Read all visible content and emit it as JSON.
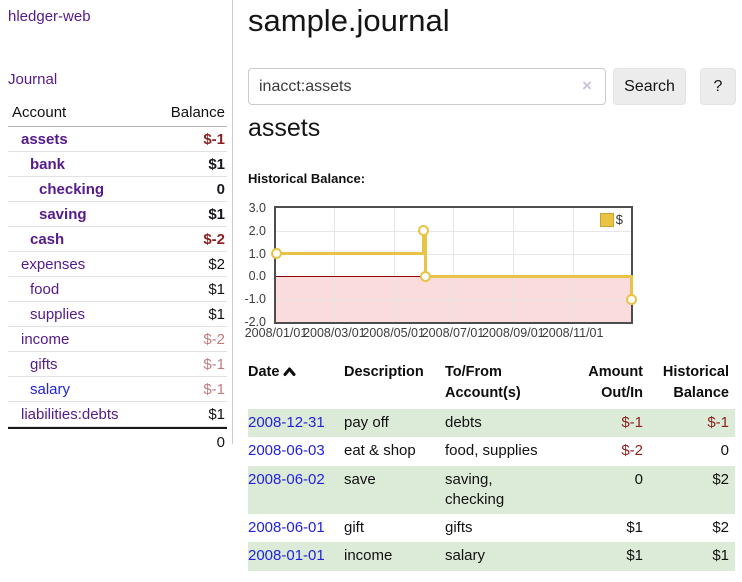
{
  "app": {
    "brand": "hledger-web",
    "nav_journal": "Journal"
  },
  "sidebar": {
    "table_headers": {
      "account": "Account",
      "balance": "Balance"
    },
    "accounts": [
      {
        "name": "assets",
        "indent": 1,
        "bold": true,
        "balance": "$-1",
        "balance_style": "neg-strong"
      },
      {
        "name": "bank",
        "indent": 2,
        "bold": true,
        "balance": "$1",
        "balance_style": "pos-strong"
      },
      {
        "name": "checking",
        "indent": 3,
        "bold": true,
        "balance": "0",
        "balance_style": "pos-strong"
      },
      {
        "name": "saving",
        "indent": 3,
        "bold": true,
        "balance": "$1",
        "balance_style": "pos-strong"
      },
      {
        "name": "cash",
        "indent": 2,
        "bold": true,
        "balance": "$-2",
        "balance_style": "neg-strong"
      },
      {
        "name": "expenses",
        "indent": 1,
        "bold": false,
        "balance": "$2",
        "balance_style": "pos"
      },
      {
        "name": "food",
        "indent": 2,
        "bold": false,
        "balance": "$1",
        "balance_style": "pos"
      },
      {
        "name": "supplies",
        "indent": 2,
        "bold": false,
        "balance": "$1",
        "balance_style": "pos"
      },
      {
        "name": "income",
        "indent": 1,
        "bold": false,
        "balance": "$-2",
        "balance_style": "neg-soft"
      },
      {
        "name": "gifts",
        "indent": 2,
        "bold": false,
        "balance": "$-1",
        "balance_style": "neg-soft"
      },
      {
        "name": "salary",
        "indent": 2,
        "bold": false,
        "link_color": "blue",
        "balance": "$-1",
        "balance_style": "neg-soft"
      },
      {
        "name": "liabilities:debts",
        "indent": 1,
        "bold": false,
        "balance": "$1",
        "balance_style": "pos"
      }
    ],
    "total": "0"
  },
  "header": {
    "title": "sample.journal"
  },
  "search": {
    "value": "inacct:assets",
    "clear_icon": "×",
    "button_label": "Search",
    "help_label": "?"
  },
  "account_page": {
    "heading": "assets",
    "chart_label": "Historical Balance:"
  },
  "chart_data": {
    "type": "line",
    "step": true,
    "title": "Historical Balance:",
    "x_range": [
      "2008-01-01",
      "2008-12-31"
    ],
    "ylim": [
      -2,
      3
    ],
    "grid": true,
    "legend_position": "top-right",
    "y_ticks": [
      {
        "label": "3.0",
        "value": 3
      },
      {
        "label": "2.0",
        "value": 2
      },
      {
        "label": "1.0",
        "value": 1
      },
      {
        "label": "0.0",
        "value": 0
      },
      {
        "label": "-1.0",
        "value": -1
      },
      {
        "label": "-2.0",
        "value": -2
      }
    ],
    "x_ticks": [
      {
        "label": "2008/01/01",
        "date": "2008-01-01"
      },
      {
        "label": "2008/03/01",
        "date": "2008-03-01"
      },
      {
        "label": "2008/05/01",
        "date": "2008-05-01"
      },
      {
        "label": "2008/07/01",
        "date": "2008-07-01"
      },
      {
        "label": "2008/09/01",
        "date": "2008-09-01"
      },
      {
        "label": "2008/11/01",
        "date": "2008-11-01"
      }
    ],
    "series": [
      {
        "name": "$",
        "color": "#e9c345",
        "points": [
          {
            "x": "2008-01-01",
            "y": 1
          },
          {
            "x": "2008-06-01",
            "y": 2
          },
          {
            "x": "2008-06-03",
            "y": 0
          },
          {
            "x": "2008-12-31",
            "y": -1
          }
        ]
      }
    ]
  },
  "transactions": {
    "headers": {
      "date": "Date",
      "sort_icon": "sort-ascending",
      "description": "Description",
      "tofrom": "To/From Account(s)",
      "amount": "Amount Out/In",
      "balance": "Historical Balance"
    },
    "rows": [
      {
        "date": "2008-12-31",
        "description": "pay off",
        "accounts": "debts",
        "amount": "$-1",
        "amount_neg": true,
        "balance": "$-1",
        "balance_neg": true
      },
      {
        "date": "2008-06-03",
        "description": "eat & shop",
        "accounts": "food, supplies",
        "amount": "$-2",
        "amount_neg": true,
        "balance": "0",
        "balance_neg": false
      },
      {
        "date": "2008-06-02",
        "description": "save",
        "accounts": "saving,\nchecking",
        "amount": "0",
        "amount_neg": false,
        "balance": "$2",
        "balance_neg": false
      },
      {
        "date": "2008-06-01",
        "description": "gift",
        "accounts": "gifts",
        "amount": "$1",
        "amount_neg": false,
        "balance": "$2",
        "balance_neg": false
      },
      {
        "date": "2008-01-01",
        "description": "income",
        "accounts": "salary",
        "amount": "$1",
        "amount_neg": false,
        "balance": "$1",
        "balance_neg": false
      }
    ]
  },
  "colors": {
    "link_purple": "#551a8b",
    "link_blue": "#2222dd",
    "negative_strong": "#8d1f1f",
    "negative_soft": "#c07e7e",
    "positive_dark": "#17171f",
    "row_green": "#dcebd8",
    "chart_line": "#e9c345",
    "zero_line": "#8b0000",
    "negative_region": "#fbdcdc"
  }
}
